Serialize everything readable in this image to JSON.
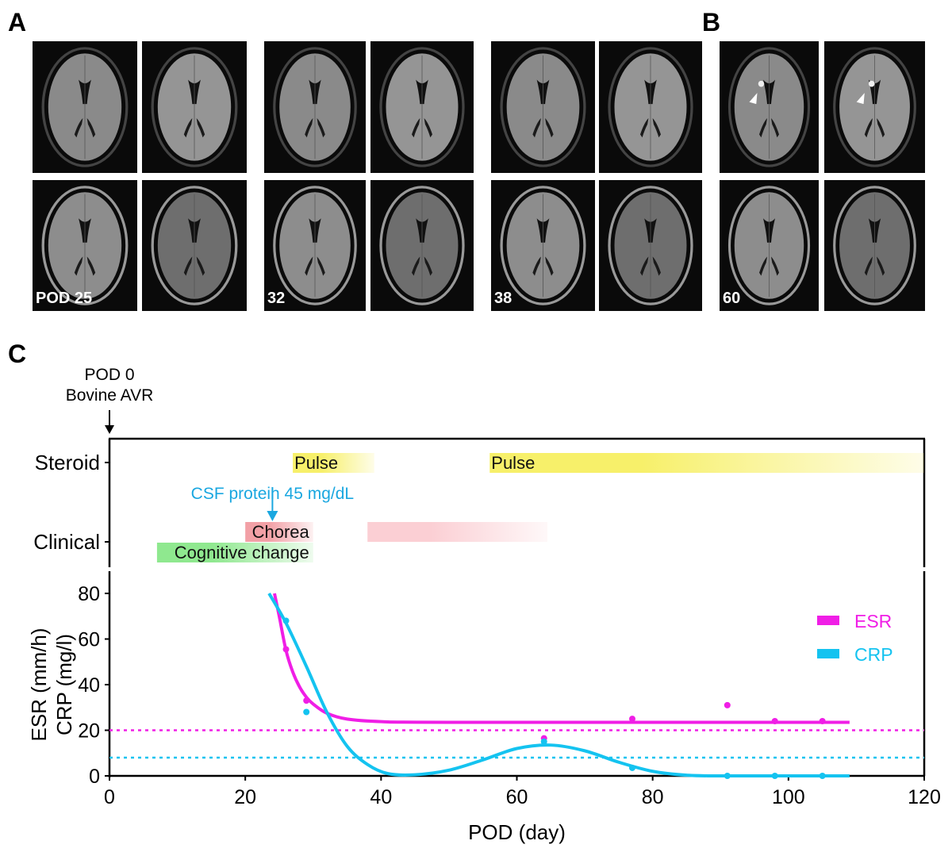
{
  "panels": {
    "a": "A",
    "b": "B",
    "c": "C"
  },
  "mri_groups": [
    {
      "label": "POD 25",
      "arrowheads": false
    },
    {
      "label": "32",
      "arrowheads": false
    },
    {
      "label": "38",
      "arrowheads": false
    },
    {
      "label": "60",
      "arrowheads": true
    }
  ],
  "timeline": {
    "event_label_1": "POD 0",
    "event_label_2": "Bovine AVR",
    "rows": [
      "Steroid",
      "Clinical"
    ],
    "bars": [
      {
        "row": "Steroid",
        "label": "Pulse",
        "start": 27,
        "end": 39,
        "color": "#f7f06a"
      },
      {
        "row": "Steroid",
        "label": "Pulse",
        "start": 56,
        "end": 120,
        "color": "#f7f06a"
      },
      {
        "row": "Clinical",
        "label": "Chorea",
        "start": 20,
        "end": 30,
        "color": "#f2a0a6"
      },
      {
        "row": "Clinical",
        "label": "",
        "start": 38,
        "end": 64.5,
        "color": "#fbcfd4"
      },
      {
        "row": "Clinical-lower",
        "label": "Cognitive change",
        "start": 7,
        "end": 30,
        "color": "#8fe88f"
      }
    ],
    "annotation": {
      "label": "CSF protein 45 mg/dL",
      "day": 24,
      "color": "#1aa7e0"
    }
  },
  "chart_data": {
    "type": "scatter",
    "xlabel": "POD (day)",
    "ylabel": [
      "ESR (mm/h)",
      "CRP (mg/l)"
    ],
    "xlim": [
      0,
      120
    ],
    "ylim": [
      0,
      80
    ],
    "xticks": [
      0,
      20,
      40,
      60,
      80,
      100,
      120
    ],
    "yticks": [
      0,
      20,
      40,
      60,
      80
    ],
    "grid": false,
    "legend_position": "right",
    "series": [
      {
        "name": "ESR",
        "color": "#f01ee6",
        "x": [
          26,
          29,
          64,
          77,
          91,
          98,
          105
        ],
        "y": [
          55.5,
          33,
          16.5,
          25,
          31,
          24,
          24
        ],
        "reference": 20,
        "fit": [
          [
            24.3,
            80
          ],
          [
            25,
            70
          ],
          [
            26,
            55
          ],
          [
            27,
            45.5
          ],
          [
            28,
            39
          ],
          [
            29,
            34.5
          ],
          [
            30,
            31.5
          ],
          [
            32,
            27.5
          ],
          [
            35,
            24.9
          ],
          [
            40,
            23.8
          ],
          [
            50,
            23.5
          ],
          [
            109,
            23.5
          ]
        ]
      },
      {
        "name": "CRP",
        "color": "#14c3f0",
        "x": [
          26,
          29,
          64,
          77,
          91,
          98,
          105
        ],
        "y": [
          68,
          28,
          15,
          3.5,
          0,
          0,
          0
        ],
        "reference": 8,
        "fit": [
          [
            23.5,
            80
          ],
          [
            26,
            67
          ],
          [
            29,
            48
          ],
          [
            32,
            28
          ],
          [
            35,
            13
          ],
          [
            38,
            5
          ],
          [
            41,
            1
          ],
          [
            45,
            0.5
          ],
          [
            50,
            2.5
          ],
          [
            55,
            7
          ],
          [
            60,
            12
          ],
          [
            65,
            13.5
          ],
          [
            70,
            11
          ],
          [
            75,
            6
          ],
          [
            80,
            2
          ],
          [
            85,
            0.3
          ],
          [
            90,
            0
          ],
          [
            109,
            0
          ]
        ]
      }
    ]
  }
}
